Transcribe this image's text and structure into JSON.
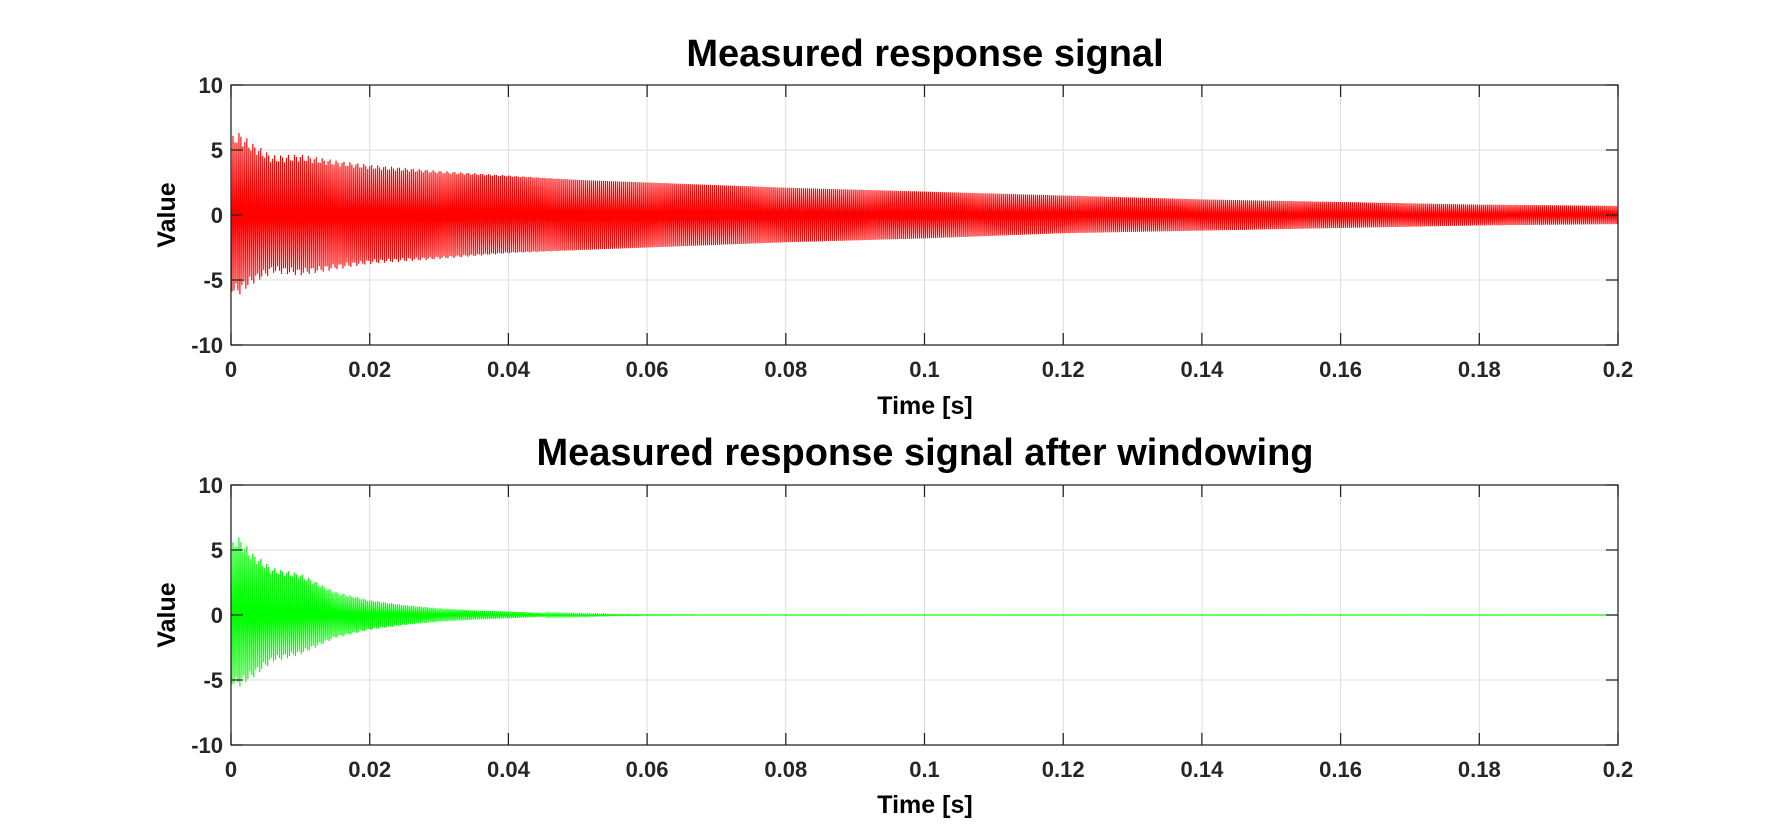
{
  "chart_data": [
    {
      "type": "line",
      "title": "Measured response signal",
      "xlabel": "Time [s]",
      "ylabel": "Value",
      "xlim": [
        0,
        0.2
      ],
      "ylim": [
        -10,
        10
      ],
      "xticks": [
        "0",
        "0.02",
        "0.04",
        "0.06",
        "0.08",
        "0.1",
        "0.12",
        "0.14",
        "0.16",
        "0.18",
        "0.2"
      ],
      "yticks": [
        "10",
        "5",
        "0",
        "-5",
        "-10"
      ],
      "grid": true,
      "series": [
        {
          "color": "#ff0000",
          "envelope": {
            "t": [
              0,
              0.001,
              0.003,
              0.006,
              0.01,
              0.015,
              0.02,
              0.03,
              0.04,
              0.05,
              0.06,
              0.08,
              0.1,
              0.12,
              0.14,
              0.16,
              0.18,
              0.2
            ],
            "upper": [
              5.5,
              6.0,
              5.2,
              4.3,
              4.4,
              4.0,
              3.7,
              3.3,
              3.0,
              2.7,
              2.5,
              2.1,
              1.8,
              1.5,
              1.2,
              1.0,
              0.8,
              0.7
            ],
            "lower": [
              -5.5,
              -5.8,
              -5.0,
              -4.2,
              -4.4,
              -4.0,
              -3.6,
              -3.3,
              -2.9,
              -2.7,
              -2.5,
              -2.1,
              -1.8,
              -1.4,
              -1.2,
              -1.0,
              -0.8,
              -0.7
            ]
          }
        }
      ]
    },
    {
      "type": "line",
      "title": "Measured response signal after windowing",
      "xlabel": "Time [s]",
      "ylabel": "Value",
      "xlim": [
        0,
        0.2
      ],
      "ylim": [
        -10,
        10
      ],
      "xticks": [
        "0",
        "0.02",
        "0.04",
        "0.06",
        "0.08",
        "0.1",
        "0.12",
        "0.14",
        "0.16",
        "0.18",
        "0.2"
      ],
      "yticks": [
        "10",
        "5",
        "0",
        "-5",
        "-10"
      ],
      "grid": true,
      "series": [
        {
          "color": "#00ff00",
          "envelope": {
            "t": [
              0,
              0.001,
              0.003,
              0.006,
              0.01,
              0.015,
              0.02,
              0.025,
              0.03,
              0.035,
              0.04,
              0.045,
              0.05,
              0.055,
              0.06,
              0.07,
              0.08,
              0.2
            ],
            "upper": [
              5.0,
              5.7,
              4.5,
              3.4,
              3.0,
              1.7,
              1.1,
              0.75,
              0.5,
              0.35,
              0.25,
              0.15,
              0.1,
              0.05,
              0.03,
              0.01,
              0.01,
              0.01
            ],
            "lower": [
              -5.0,
              -5.2,
              -4.6,
              -3.4,
              -2.9,
              -1.7,
              -1.1,
              -0.75,
              -0.5,
              -0.35,
              -0.25,
              -0.15,
              -0.1,
              -0.05,
              -0.03,
              -0.01,
              -0.01,
              -0.01
            ]
          }
        }
      ]
    }
  ]
}
